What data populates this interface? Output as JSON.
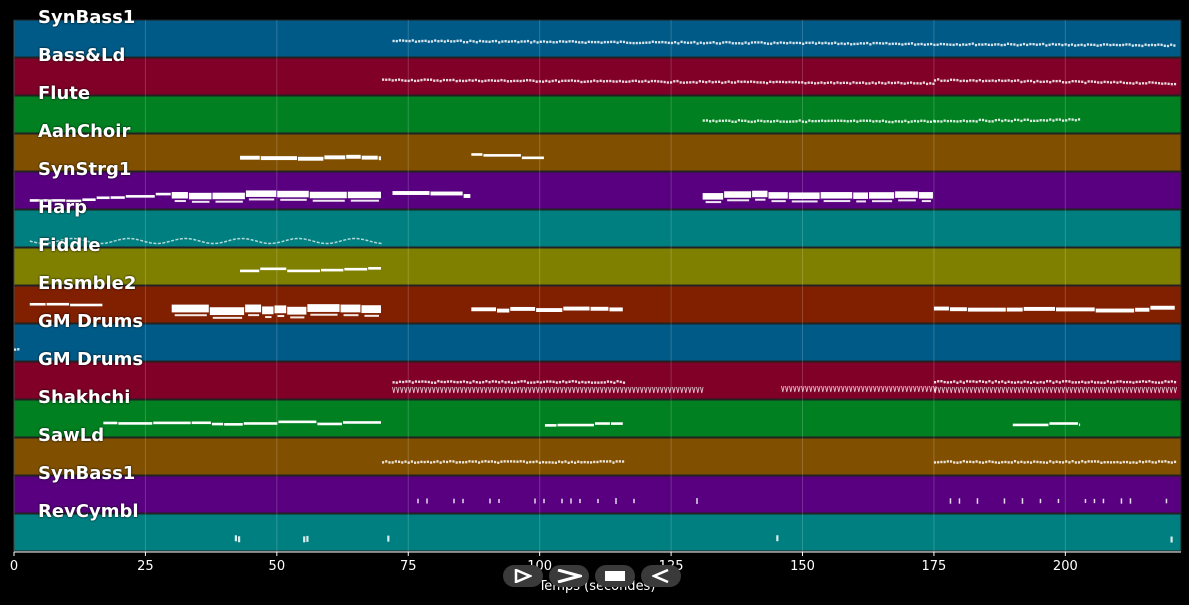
{
  "tracks": [
    {
      "name": "SynBass1",
      "color": "#005a87",
      "notes": [
        [
          72,
          221,
          -4,
          0.5,
          "dots",
          0.8
        ]
      ]
    },
    {
      "name": "Bass&Ld",
      "color": "#800028",
      "notes": [
        [
          70,
          175,
          -3,
          0.5,
          "dots",
          0.8
        ],
        [
          175,
          221,
          -3,
          0.5,
          "dots",
          0.8
        ]
      ]
    },
    {
      "name": "Flute",
      "color": "#008020",
      "notes": [
        [
          131,
          175,
          0,
          0.5,
          "dots",
          0.8
        ],
        [
          175,
          203,
          0,
          -1,
          "dots",
          0.8
        ]
      ]
    },
    {
      "name": "AahChoir",
      "color": "#805000",
      "notes": [
        [
          43,
          70,
          0,
          0,
          "bar",
          3
        ],
        [
          87,
          101,
          -3,
          0,
          "bar",
          2
        ]
      ]
    },
    {
      "name": "SynStrg1",
      "color": "#580080",
      "notes": [
        [
          3,
          30,
          5,
          -2,
          "bar",
          2
        ],
        [
          30,
          70,
          0,
          -1,
          "bar",
          5
        ],
        [
          72,
          87,
          -2,
          0,
          "bar",
          3
        ],
        [
          131,
          175,
          0,
          -1,
          "bar",
          5
        ]
      ]
    },
    {
      "name": "Harp",
      "color": "#007f80",
      "notes": [
        [
          3,
          70,
          0,
          0,
          "wave",
          1
        ]
      ]
    },
    {
      "name": "Fiddle",
      "color": "#808000",
      "notes": [
        [
          43,
          70,
          -2,
          -4,
          "bar",
          2
        ]
      ]
    },
    {
      "name": "Ensmble2",
      "color": "#802000",
      "notes": [
        [
          3,
          17,
          -6,
          -6,
          "bar",
          2
        ],
        [
          30,
          70,
          1,
          0,
          "bar",
          6
        ],
        [
          87,
          116,
          0,
          -1,
          "bar",
          3
        ],
        [
          175,
          221,
          0,
          -1,
          "bar",
          3
        ]
      ]
    },
    {
      "name": "GM Drums",
      "color": "#005a87",
      "notes": [
        [
          0,
          1,
          0,
          0,
          "dots",
          0.8
        ]
      ]
    },
    {
      "name": "GM Drums",
      "color": "#800028",
      "notes": [
        [
          72,
          116,
          -5,
          -5,
          "dots",
          0.8
        ],
        [
          72,
          131,
          3,
          3,
          "drum",
          1
        ],
        [
          146,
          175,
          2,
          2,
          "drum",
          1
        ],
        [
          175,
          221,
          -5,
          -5,
          "dots",
          0.8
        ],
        [
          175,
          221,
          3,
          3,
          "drum",
          1
        ]
      ]
    },
    {
      "name": "Shakhchi",
      "color": "#008020",
      "notes": [
        [
          17,
          70,
          0,
          -2,
          "bar",
          2
        ],
        [
          101,
          116,
          0,
          0,
          "bar",
          2
        ],
        [
          190,
          203,
          0,
          0,
          "bar",
          2
        ]
      ]
    },
    {
      "name": "SawLd",
      "color": "#805000",
      "notes": [
        [
          70,
          116,
          -1,
          -1,
          "dots",
          0.8
        ],
        [
          175,
          221,
          -1,
          -1,
          "dots",
          0.8
        ]
      ]
    },
    {
      "name": "SynBass1",
      "color": "#580080",
      "notes": [
        [
          75,
          131,
          0,
          0,
          "sparse",
          0.5
        ],
        [
          178,
          220,
          0,
          0,
          "sparse",
          0.5
        ]
      ]
    },
    {
      "name": "RevCymbl",
      "color": "#007f80",
      "notes": [
        [
          42,
          43,
          0,
          0,
          "dots",
          2
        ],
        [
          55,
          56,
          0,
          0,
          "dots",
          2
        ],
        [
          71,
          71.5,
          0,
          0,
          "dots",
          2
        ],
        [
          145,
          145.5,
          0,
          0,
          "dots",
          2
        ],
        [
          220,
          220.6,
          0,
          0,
          "dots",
          2
        ]
      ]
    }
  ],
  "x_axis": {
    "label": "Temps (secondes)",
    "min": 0,
    "max": 222,
    "ticks": [
      "0",
      "25",
      "50",
      "75",
      "100",
      "125",
      "150",
      "175",
      "200"
    ]
  },
  "controls": {
    "play": "play-icon",
    "fast_forward": "fast-forward-icon",
    "stop": "stop-icon",
    "rewind": "rewind-icon"
  }
}
